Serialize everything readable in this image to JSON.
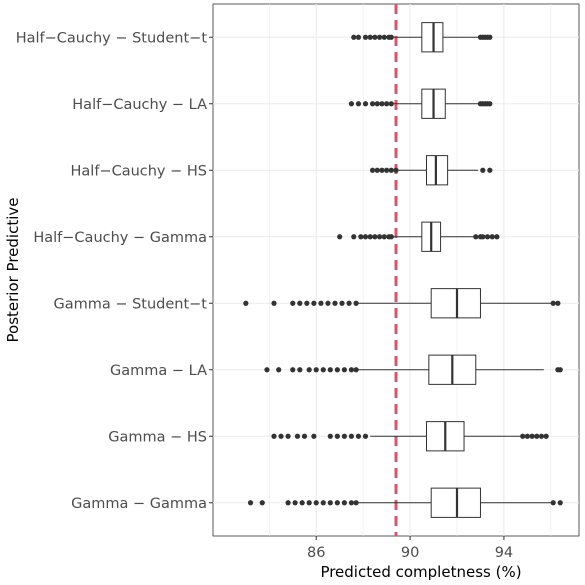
{
  "chart_data": {
    "type": "boxplot",
    "orientation": "horizontal",
    "xlabel": "Predicted completness (%)",
    "ylabel": "Posterior Predictive",
    "xlim": [
      81.6,
      97.2
    ],
    "x_ticks": [
      86,
      90,
      94
    ],
    "grid": true,
    "reference_line": {
      "x": 89.4,
      "style": "dashed",
      "color": "#d6566e"
    },
    "box_color": "#333333",
    "outlier_color": "#333333",
    "categories": [
      {
        "label": "Half−Cauchy − Student−t",
        "whisker_low": 89.3,
        "q1": 90.5,
        "median": 91.0,
        "q3": 91.4,
        "whisker_high": 92.9,
        "outliers_low": [
          87.6,
          87.8,
          88.1,
          88.3,
          88.5,
          88.7,
          88.9,
          89.1,
          89.2
        ],
        "outliers_high": [
          93.0,
          93.1,
          93.2,
          93.3,
          93.4
        ]
      },
      {
        "label": "Half−Cauchy − LA",
        "whisker_low": 89.3,
        "q1": 90.5,
        "median": 91.0,
        "q3": 91.5,
        "whisker_high": 93.0,
        "outliers_low": [
          87.5,
          87.8,
          88.1,
          88.4,
          88.6,
          88.8,
          89.0,
          89.2
        ],
        "outliers_high": [
          93.0,
          93.1,
          93.2,
          93.3,
          93.4
        ]
      },
      {
        "label": "Half−Cauchy − HS",
        "whisker_low": 89.5,
        "q1": 90.7,
        "median": 91.1,
        "q3": 91.6,
        "whisker_high": 92.9,
        "outliers_low": [
          88.4,
          88.6,
          88.8,
          89.0,
          89.2,
          89.4
        ],
        "outliers_high": [
          93.1,
          93.4
        ]
      },
      {
        "label": "Half−Cauchy − Gamma",
        "whisker_low": 89.3,
        "q1": 90.5,
        "median": 90.9,
        "q3": 91.3,
        "whisker_high": 92.7,
        "outliers_low": [
          87.0,
          87.6,
          87.9,
          88.1,
          88.3,
          88.5,
          88.7,
          88.9,
          89.1,
          89.2
        ],
        "outliers_high": [
          92.8,
          93.0,
          93.1,
          93.3,
          93.5,
          93.7
        ]
      },
      {
        "label": "Gamma − Student−t",
        "whisker_low": 87.8,
        "q1": 90.9,
        "median": 92.0,
        "q3": 93.0,
        "whisker_high": 96.0,
        "outliers_low": [
          83.0,
          84.2,
          85.0,
          85.3,
          85.6,
          85.9,
          86.2,
          86.5,
          86.8,
          87.1,
          87.4,
          87.7
        ],
        "outliers_high": [
          96.1,
          96.3
        ]
      },
      {
        "label": "Gamma − LA",
        "whisker_low": 87.8,
        "q1": 90.8,
        "median": 91.8,
        "q3": 92.8,
        "whisker_high": 95.7,
        "outliers_low": [
          83.9,
          84.4,
          85.0,
          85.3,
          85.7,
          86.0,
          86.3,
          86.6,
          86.9,
          87.2,
          87.5,
          87.7
        ],
        "outliers_high": [
          96.3,
          96.4
        ]
      },
      {
        "label": "Gamma − HS",
        "whisker_low": 88.3,
        "q1": 90.7,
        "median": 91.5,
        "q3": 92.3,
        "whisker_high": 94.7,
        "outliers_low": [
          84.2,
          84.5,
          84.8,
          85.2,
          85.5,
          85.9,
          86.6,
          86.9,
          87.2,
          87.5,
          87.8,
          88.1
        ],
        "outliers_high": [
          94.8,
          95.0,
          95.2,
          95.4,
          95.6,
          95.8
        ]
      },
      {
        "label": "Gamma − Gamma",
        "whisker_low": 87.8,
        "q1": 90.9,
        "median": 92.0,
        "q3": 93.0,
        "whisker_high": 96.0,
        "outliers_low": [
          83.2,
          83.7,
          84.8,
          85.1,
          85.4,
          85.7,
          86.0,
          86.3,
          86.6,
          86.9,
          87.2,
          87.5,
          87.7
        ],
        "outliers_high": [
          96.1,
          96.4
        ]
      }
    ]
  }
}
